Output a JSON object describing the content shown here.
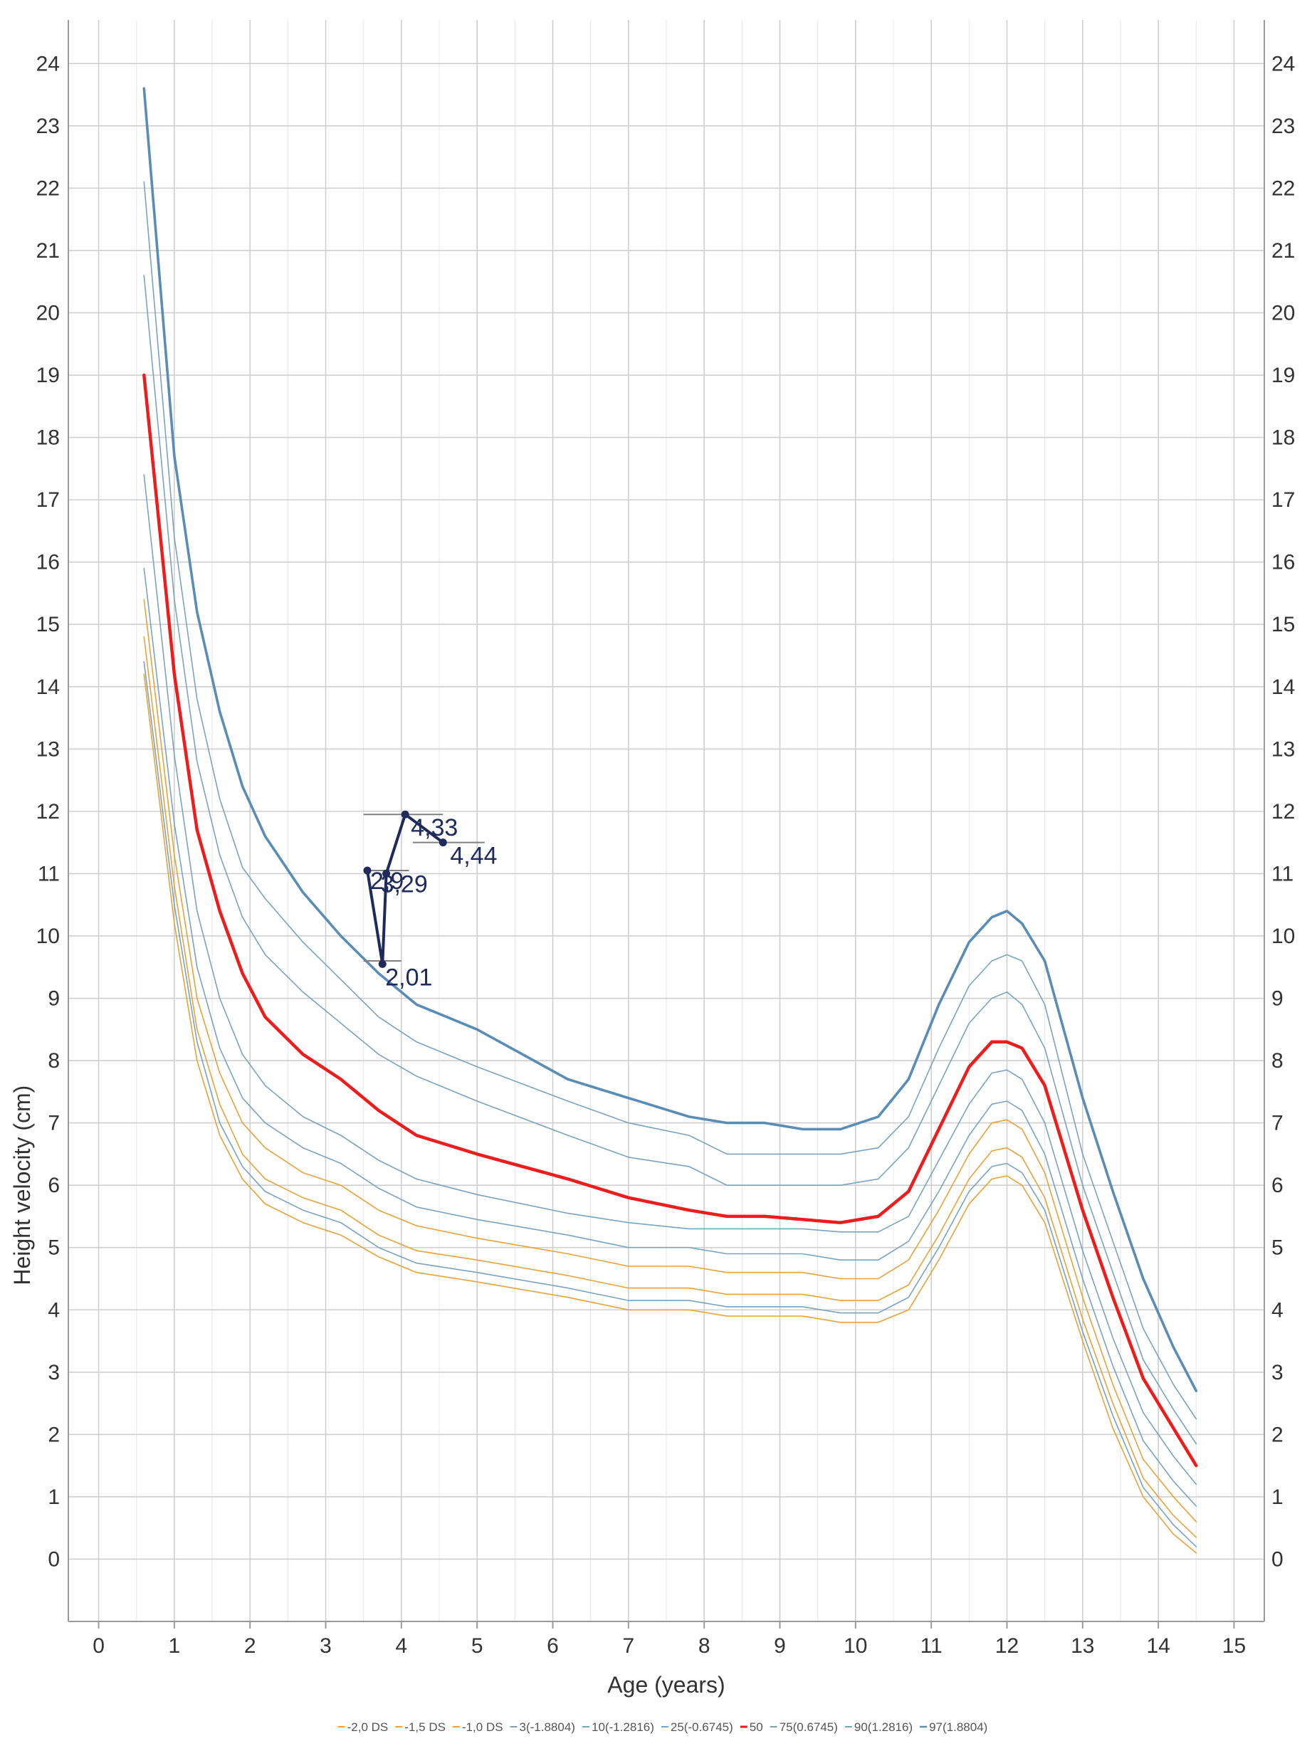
{
  "chart_data": {
    "type": "line",
    "title": "",
    "xlabel": "Age (years)",
    "ylabel": "Height velocity (cm)",
    "xlim": [
      -0.4,
      15.4
    ],
    "ylim": [
      -1.0,
      24.7
    ],
    "xticks": [
      0,
      1,
      2,
      3,
      4,
      5,
      6,
      7,
      8,
      9,
      10,
      11,
      12,
      13,
      14,
      15
    ],
    "yticks": [
      0,
      1,
      2,
      3,
      4,
      5,
      6,
      7,
      8,
      9,
      10,
      11,
      12,
      13,
      14,
      15,
      16,
      17,
      18,
      19,
      20,
      21,
      22,
      23,
      24
    ],
    "grid": true,
    "minor_grid_x": true,
    "right_axis": true,
    "legend_position": "bottom",
    "x": [
      0.6,
      1.0,
      1.3,
      1.6,
      1.9,
      2.2,
      2.7,
      3.2,
      3.7,
      4.2,
      5.0,
      6.2,
      7.0,
      7.8,
      8.3,
      8.8,
      9.3,
      9.8,
      10.3,
      10.7,
      11.1,
      11.5,
      11.8,
      12.0,
      12.2,
      12.5,
      13.0,
      13.4,
      13.8,
      14.2,
      14.5
    ],
    "series": [
      {
        "name": "-2,0 DS",
        "color": "#e8a23a",
        "width": 1.6,
        "values": [
          14.2,
          10.2,
          8.0,
          6.8,
          6.1,
          5.7,
          5.4,
          5.2,
          4.85,
          4.6,
          4.45,
          4.2,
          4.0,
          4.0,
          3.9,
          3.9,
          3.9,
          3.8,
          3.8,
          4.0,
          4.8,
          5.7,
          6.1,
          6.15,
          6.0,
          5.4,
          3.5,
          2.1,
          1.0,
          0.4,
          0.1
        ]
      },
      {
        "name": "-1,5 DS",
        "color": "#e8a23a",
        "width": 1.6,
        "values": [
          14.8,
          10.8,
          8.5,
          7.3,
          6.5,
          6.1,
          5.8,
          5.6,
          5.2,
          4.95,
          4.8,
          4.55,
          4.35,
          4.35,
          4.25,
          4.25,
          4.25,
          4.15,
          4.15,
          4.4,
          5.2,
          6.1,
          6.55,
          6.6,
          6.45,
          5.8,
          3.85,
          2.5,
          1.3,
          0.7,
          0.35
        ]
      },
      {
        "name": "-1,0 DS",
        "color": "#e8a23a",
        "width": 1.6,
        "values": [
          15.4,
          11.3,
          9.0,
          7.8,
          7.0,
          6.6,
          6.2,
          6.0,
          5.6,
          5.35,
          5.15,
          4.9,
          4.7,
          4.7,
          4.6,
          4.6,
          4.6,
          4.5,
          4.5,
          4.8,
          5.6,
          6.5,
          7.0,
          7.05,
          6.9,
          6.2,
          4.2,
          2.8,
          1.6,
          1.0,
          0.6
        ]
      },
      {
        "name": "3(-1.8804)",
        "color": "#7aa3c0",
        "width": 1.6,
        "values": [
          14.4,
          10.5,
          8.3,
          7.0,
          6.3,
          5.9,
          5.6,
          5.4,
          5.0,
          4.75,
          4.6,
          4.35,
          4.15,
          4.15,
          4.05,
          4.05,
          4.05,
          3.95,
          3.95,
          4.2,
          5.0,
          5.9,
          6.3,
          6.35,
          6.2,
          5.6,
          3.65,
          2.3,
          1.15,
          0.55,
          0.2
        ]
      },
      {
        "name": "10(-1.2816)",
        "color": "#7aa3c0",
        "width": 1.6,
        "values": [
          15.9,
          11.8,
          9.5,
          8.2,
          7.4,
          7.0,
          6.6,
          6.35,
          5.95,
          5.65,
          5.45,
          5.2,
          5.0,
          5.0,
          4.9,
          4.9,
          4.9,
          4.8,
          4.8,
          5.1,
          5.9,
          6.8,
          7.3,
          7.35,
          7.2,
          6.5,
          4.5,
          3.1,
          1.9,
          1.25,
          0.85
        ]
      },
      {
        "name": "25(-0.6745)",
        "color": "#7aa3c0",
        "width": 1.6,
        "values": [
          17.4,
          12.9,
          10.4,
          9.0,
          8.1,
          7.6,
          7.1,
          6.8,
          6.4,
          6.1,
          5.85,
          5.55,
          5.4,
          5.3,
          5.3,
          5.3,
          5.3,
          5.25,
          5.25,
          5.5,
          6.4,
          7.3,
          7.8,
          7.85,
          7.7,
          7.0,
          4.95,
          3.55,
          2.35,
          1.65,
          1.2
        ]
      },
      {
        "name": "50",
        "color": "#ee1c1c",
        "width": 4.5,
        "values": [
          19.0,
          14.2,
          11.7,
          10.4,
          9.4,
          8.7,
          8.1,
          7.7,
          7.2,
          6.8,
          6.5,
          6.1,
          5.8,
          5.6,
          5.5,
          5.5,
          5.45,
          5.4,
          5.5,
          5.9,
          6.9,
          7.9,
          8.3,
          8.3,
          8.2,
          7.6,
          5.6,
          4.2,
          2.9,
          2.1,
          1.5
        ]
      },
      {
        "name": "75(0.6745)",
        "color": "#7aa3c0",
        "width": 1.6,
        "values": [
          20.6,
          15.4,
          12.8,
          11.3,
          10.3,
          9.7,
          9.1,
          8.6,
          8.1,
          7.75,
          7.35,
          6.8,
          6.45,
          6.3,
          6.0,
          6.0,
          6.0,
          6.0,
          6.1,
          6.6,
          7.6,
          8.6,
          9.0,
          9.1,
          8.9,
          8.2,
          6.0,
          4.6,
          3.2,
          2.4,
          1.85
        ]
      },
      {
        "name": "90(1.2816)",
        "color": "#7aa3c0",
        "width": 1.6,
        "values": [
          22.1,
          16.4,
          13.8,
          12.2,
          11.1,
          10.6,
          9.9,
          9.3,
          8.7,
          8.3,
          7.9,
          7.35,
          7.0,
          6.8,
          6.5,
          6.5,
          6.5,
          6.5,
          6.6,
          7.1,
          8.2,
          9.2,
          9.6,
          9.7,
          9.6,
          8.9,
          6.5,
          5.1,
          3.7,
          2.8,
          2.25
        ]
      },
      {
        "name": "97(1.8804)",
        "color": "#5a8db5",
        "width": 3.6,
        "values": [
          23.6,
          17.7,
          15.2,
          13.6,
          12.4,
          11.6,
          10.7,
          10.0,
          9.4,
          8.9,
          8.5,
          7.7,
          7.4,
          7.1,
          7.0,
          7.0,
          6.9,
          6.9,
          7.1,
          7.7,
          8.9,
          9.9,
          10.3,
          10.4,
          10.2,
          9.6,
          7.4,
          5.9,
          4.5,
          3.4,
          2.7
        ]
      }
    ],
    "patient": {
      "color": "#1f2a5c",
      "points": [
        {
          "x": 3.55,
          "y": 11.05,
          "label": "2,9"
        },
        {
          "x": 3.75,
          "y": 9.55,
          "label": "2,01"
        },
        {
          "x": 3.8,
          "y": 11.0,
          "label": "3,29"
        },
        {
          "x": 4.05,
          "y": 11.95,
          "label": "4,33"
        },
        {
          "x": 4.55,
          "y": 11.5,
          "label": "4,44"
        }
      ],
      "path_order": [
        0,
        1,
        2,
        3,
        4
      ],
      "whiskers": [
        {
          "x1": 3.5,
          "x2": 4.1,
          "y": 11.05
        },
        {
          "x1": 3.5,
          "x2": 4.0,
          "y": 9.6
        },
        {
          "x1": 3.5,
          "x2": 4.55,
          "y": 11.95
        },
        {
          "x1": 4.15,
          "x2": 5.1,
          "y": 11.5
        }
      ]
    }
  }
}
